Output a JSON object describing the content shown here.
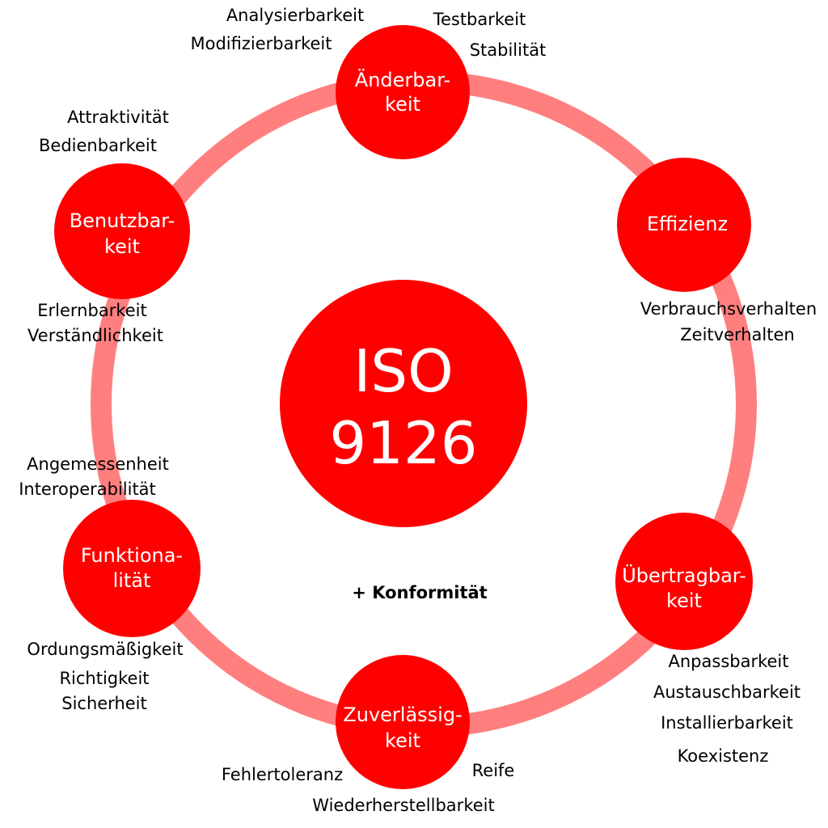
{
  "colors": {
    "ring": "#ff7f7f",
    "node": "#ff0000",
    "node_text": "#ffffff",
    "sub_text": "#000000"
  },
  "center": {
    "line1": "ISO",
    "line2": "9126"
  },
  "nodes": {
    "aenderbarkeit": {
      "line1": "Änderbar-",
      "line2": "keit"
    },
    "effizienz": {
      "line1": "Effizienz"
    },
    "uebertragbarkeit": {
      "line1": "Übertragbar-",
      "line2": "keit"
    },
    "zuverlaessigkeit": {
      "line1": "Zuverlässig-",
      "line2": "keit"
    },
    "funktionalitaet": {
      "line1": "Funktiona-",
      "line2": "lität"
    },
    "benutzbarkeit": {
      "line1": "Benutzbar-",
      "line2": "keit"
    }
  },
  "sub": {
    "aenderbarkeit": [
      "Analysierbarkeit",
      "Modifizierbarkeit",
      "Testbarkeit",
      "Stabilität"
    ],
    "effizienz": [
      "Verbrauchsverhalten",
      "Zeitverhalten"
    ],
    "uebertragbarkeit": [
      "Anpassbarkeit",
      "Austauschbarkeit",
      "Installierbarkeit",
      "Koexistenz"
    ],
    "zuverlaessigkeit": [
      "Fehlertoleranz",
      "Reife",
      "Wiederherstellbarkeit"
    ],
    "funktionalitaet": [
      "Angemessenheit",
      "Interoperabilität",
      "Ordungsmäßigkeit",
      "Richtigkeit",
      "Sicherheit"
    ],
    "benutzbarkeit": [
      "Attraktivität",
      "Bedienbarkeit",
      "Erlernbarkeit",
      "Verständlichkeit"
    ]
  },
  "note": "+ Konformität"
}
